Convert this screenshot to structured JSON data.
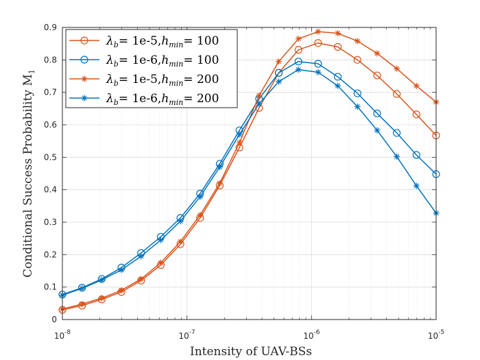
{
  "chart_data": {
    "type": "line",
    "title": "",
    "xlabel": "Intensity of UAV-BSs",
    "ylabel": "Conditional Success Probability M",
    "ylabel_subscript": "1",
    "xscale": "log",
    "xlim": [
      1e-08,
      1e-05
    ],
    "ylim": [
      0,
      0.9
    ],
    "grid": true,
    "legend_location": "top-left",
    "x_ticks": [
      {
        "value": 1e-08,
        "base": "10",
        "exp": "-8"
      },
      {
        "value": 1e-07,
        "base": "10",
        "exp": "-7"
      },
      {
        "value": 1e-06,
        "base": "10",
        "exp": "-6"
      },
      {
        "value": 1e-05,
        "base": "10",
        "exp": "-5"
      }
    ],
    "y_ticks": [
      "0",
      "0.1",
      "0.2",
      "0.3",
      "0.4",
      "0.5",
      "0.6",
      "0.7",
      "0.8",
      "0.9"
    ],
    "x": [
      1e-08,
      1.438e-08,
      2.069e-08,
      2.976e-08,
      4.281e-08,
      6.158e-08,
      8.859e-08,
      1.274e-07,
      1.833e-07,
      2.637e-07,
      3.793e-07,
      5.456e-07,
      7.848e-07,
      1.129e-06,
      1.624e-06,
      2.336e-06,
      3.36e-06,
      4.833e-06,
      6.952e-06,
      1e-05
    ],
    "series": [
      {
        "name": "λb= 1e-5,hmin= 100",
        "legend_sym": "λ",
        "legend_sub1": "b",
        "legend_mid": "= 1e-5,",
        "legend_h": "h",
        "legend_sub2": "min",
        "legend_end": "= 100",
        "color": "#D95319",
        "marker": "circle",
        "values": [
          0.03,
          0.043,
          0.062,
          0.085,
          0.12,
          0.168,
          0.232,
          0.313,
          0.413,
          0.53,
          0.652,
          0.76,
          0.831,
          0.852,
          0.84,
          0.8,
          0.752,
          0.695,
          0.632,
          0.567
        ]
      },
      {
        "name": "λb= 1e-6,hmin= 100",
        "legend_sym": "λ",
        "legend_sub1": "b",
        "legend_mid": "= 1e-6,",
        "legend_h": "h",
        "legend_sub2": "min",
        "legend_end": "= 100",
        "color": "#0072BD",
        "marker": "circle",
        "values": [
          0.077,
          0.098,
          0.125,
          0.16,
          0.205,
          0.255,
          0.313,
          0.388,
          0.48,
          0.583,
          0.68,
          0.76,
          0.795,
          0.788,
          0.748,
          0.697,
          0.635,
          0.575,
          0.507,
          0.448
        ]
      },
      {
        "name": "λb= 1e-5,hmin= 200",
        "legend_sym": "λ",
        "legend_sub1": "b",
        "legend_mid": "= 1e-5,",
        "legend_h": "h",
        "legend_sub2": "min",
        "legend_end": "= 200",
        "color": "#D95319",
        "marker": "asterisk",
        "values": [
          0.032,
          0.048,
          0.066,
          0.09,
          0.125,
          0.175,
          0.24,
          0.322,
          0.42,
          0.545,
          0.69,
          0.795,
          0.865,
          0.887,
          0.882,
          0.858,
          0.82,
          0.773,
          0.72,
          0.67
        ]
      },
      {
        "name": "λb= 1e-6,hmin= 200",
        "legend_sym": "λ",
        "legend_sub1": "b",
        "legend_mid": "= 1e-6,",
        "legend_h": "h",
        "legend_sub2": "min",
        "legend_end": "= 200",
        "color": "#0072BD",
        "marker": "asterisk",
        "values": [
          0.075,
          0.096,
          0.122,
          0.153,
          0.195,
          0.245,
          0.303,
          0.378,
          0.47,
          0.57,
          0.665,
          0.733,
          0.77,
          0.762,
          0.72,
          0.656,
          0.583,
          0.502,
          0.412,
          0.328
        ]
      }
    ]
  }
}
